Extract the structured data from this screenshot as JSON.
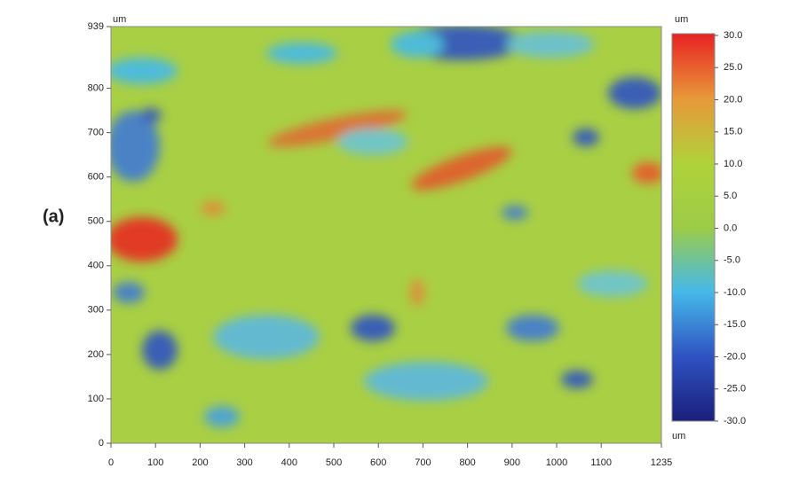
{
  "chart_data": {
    "type": "heatmap",
    "panel_label": "(a)",
    "x_label": "um",
    "y_label": "um",
    "colorbar_label": "um",
    "xlim": [
      0,
      1235
    ],
    "xticks": [
      0,
      100,
      200,
      300,
      400,
      500,
      600,
      700,
      800,
      900,
      1000,
      1100,
      1235
    ],
    "ylim": [
      0,
      939
    ],
    "yticks": [
      0,
      100,
      200,
      300,
      400,
      500,
      600,
      700,
      800,
      939
    ],
    "clim": [
      -30,
      30
    ],
    "cticks": [
      {
        "value": 30,
        "label": "30.0"
      },
      {
        "value": 25,
        "label": "25.0"
      },
      {
        "value": 20,
        "label": "20.0"
      },
      {
        "value": 15,
        "label": "15.0"
      },
      {
        "value": 10,
        "label": "10.0"
      },
      {
        "value": 5,
        "label": "5.0"
      },
      {
        "value": 0,
        "label": "0.0"
      },
      {
        "value": -5,
        "label": "-5.0"
      },
      {
        "value": -10,
        "label": "-10.0"
      },
      {
        "value": -15,
        "label": "-15.0"
      },
      {
        "value": -20,
        "label": "-20.0"
      },
      {
        "value": -25,
        "label": "-25.0"
      },
      {
        "value": -30,
        "label": "-30.0"
      }
    ],
    "colormap": [
      "#1a1f7a",
      "#2f52c2",
      "#45b9e9",
      "#9ccc48",
      "#b0d23a",
      "#e8983a",
      "#e82222"
    ]
  }
}
